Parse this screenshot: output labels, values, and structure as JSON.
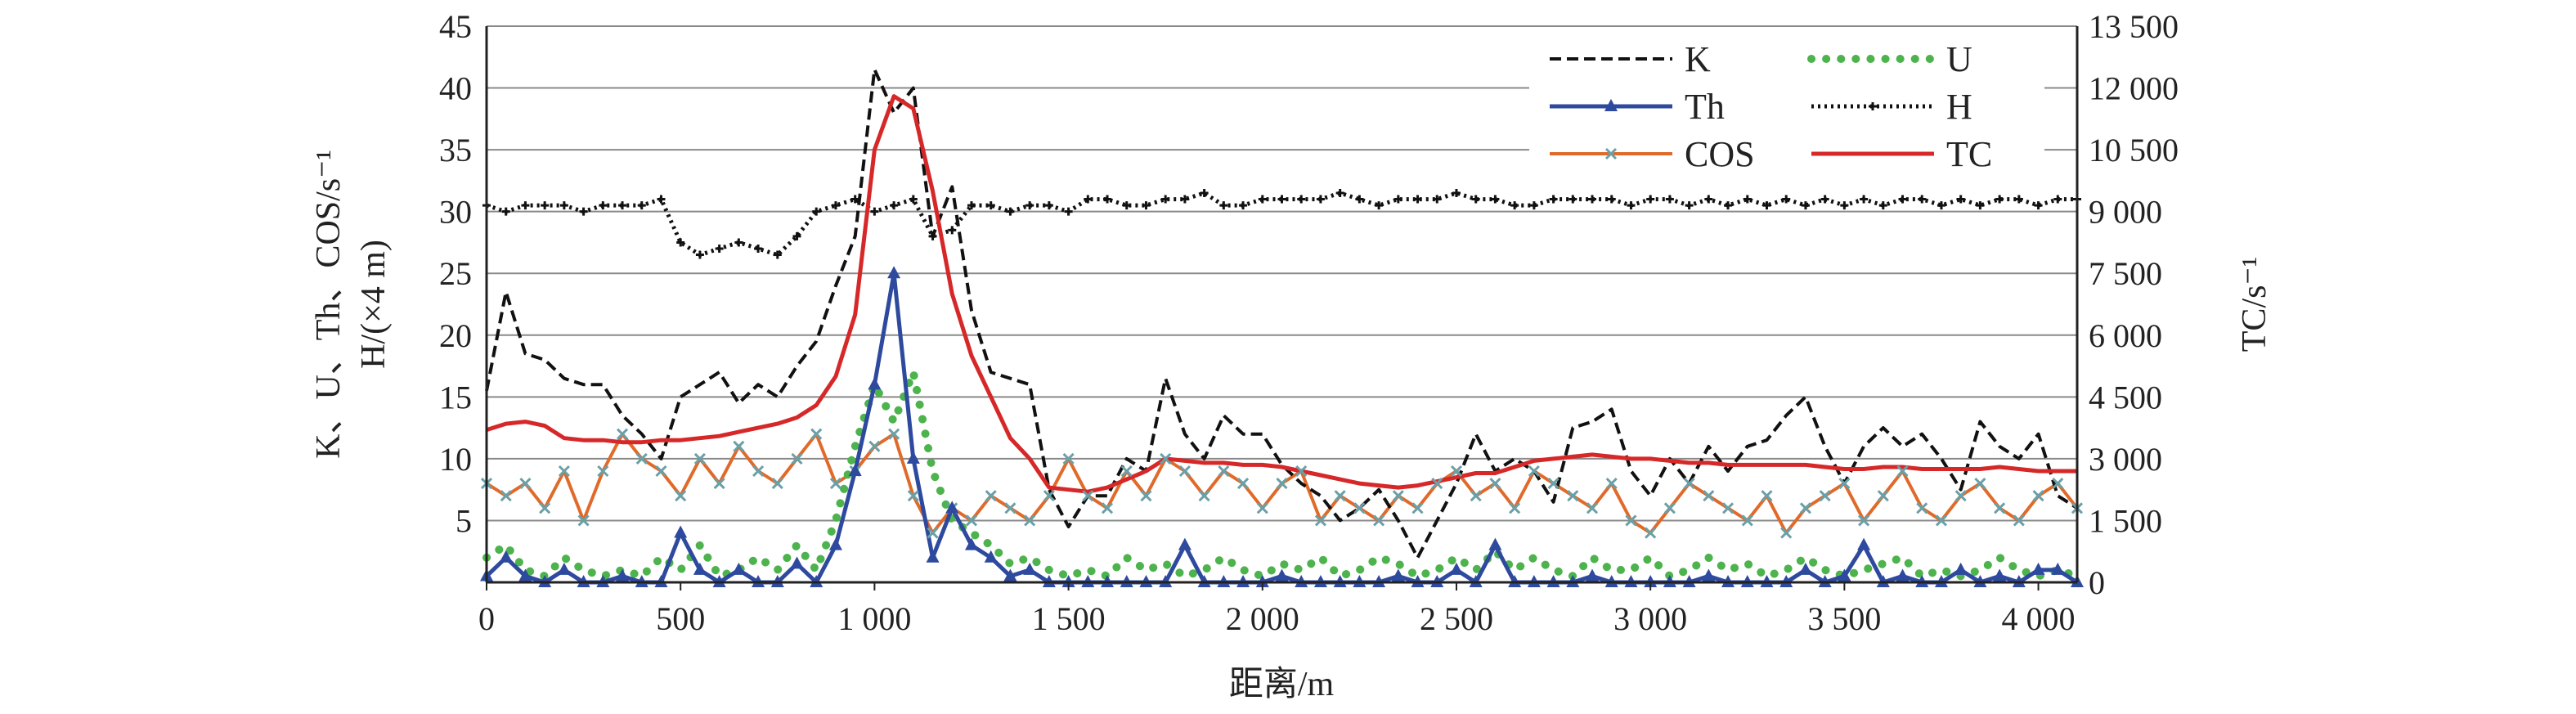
{
  "chart_data": {
    "type": "line",
    "xlabel": "距离/m",
    "ylabel_left_line1": "K、U、Th、COS/s⁻¹",
    "ylabel_left_line2": "H/(×4 m)",
    "ylabel_right": "TC/s⁻¹",
    "x_range": [
      0,
      4100
    ],
    "y_left_range": [
      0,
      45
    ],
    "y_right_range": [
      0,
      13500
    ],
    "x_ticks": [
      {
        "value": 0,
        "label": "0"
      },
      {
        "value": 500,
        "label": "500"
      },
      {
        "value": 1000,
        "label": "1 000"
      },
      {
        "value": 1500,
        "label": "1 500"
      },
      {
        "value": 2000,
        "label": "2 000"
      },
      {
        "value": 2500,
        "label": "2 500"
      },
      {
        "value": 3000,
        "label": "3 000"
      },
      {
        "value": 3500,
        "label": "3 500"
      },
      {
        "value": 4000,
        "label": "4 000"
      }
    ],
    "y_left_ticks": [
      {
        "value": 5,
        "label": "5"
      },
      {
        "value": 10,
        "label": "10"
      },
      {
        "value": 15,
        "label": "15"
      },
      {
        "value": 20,
        "label": "20"
      },
      {
        "value": 25,
        "label": "25"
      },
      {
        "value": 30,
        "label": "30"
      },
      {
        "value": 35,
        "label": "35"
      },
      {
        "value": 40,
        "label": "40"
      },
      {
        "value": 45,
        "label": "45"
      }
    ],
    "y_right_ticks": [
      {
        "value": 0,
        "label": "0"
      },
      {
        "value": 1500,
        "label": "1 500"
      },
      {
        "value": 3000,
        "label": "3 000"
      },
      {
        "value": 4500,
        "label": "4 500"
      },
      {
        "value": 6000,
        "label": "6 000"
      },
      {
        "value": 7500,
        "label": "7 500"
      },
      {
        "value": 9000,
        "label": "9 000"
      },
      {
        "value": 10500,
        "label": "10 500"
      },
      {
        "value": 12000,
        "label": "12 000"
      },
      {
        "value": 13500,
        "label": "13 500"
      }
    ],
    "legend_position": "top-right",
    "series": [
      {
        "name": "K",
        "axis": "left",
        "style": "dashed",
        "color": "#111111",
        "x": [
          0,
          50,
          100,
          150,
          200,
          250,
          300,
          350,
          400,
          450,
          500,
          550,
          600,
          650,
          700,
          750,
          800,
          850,
          900,
          950,
          1000,
          1050,
          1100,
          1150,
          1200,
          1250,
          1300,
          1350,
          1400,
          1450,
          1500,
          1550,
          1600,
          1650,
          1700,
          1750,
          1800,
          1850,
          1900,
          1950,
          2000,
          2050,
          2100,
          2150,
          2200,
          2250,
          2300,
          2350,
          2400,
          2450,
          2500,
          2550,
          2600,
          2650,
          2700,
          2750,
          2800,
          2850,
          2900,
          2950,
          3000,
          3050,
          3100,
          3150,
          3200,
          3250,
          3300,
          3350,
          3400,
          3450,
          3500,
          3550,
          3600,
          3650,
          3700,
          3750,
          3800,
          3850,
          3900,
          3950,
          4000,
          4050,
          4100
        ],
        "y": [
          15.5,
          23.5,
          18.5,
          18,
          16.5,
          16,
          16,
          13.5,
          12,
          10,
          15,
          16,
          17,
          14.5,
          16,
          15,
          17.5,
          19.5,
          24,
          28,
          41.5,
          38,
          40,
          28,
          32,
          22,
          17,
          16.5,
          16,
          7.5,
          4.5,
          7,
          7,
          10,
          9,
          16.5,
          12,
          10,
          13.5,
          12,
          12,
          9.5,
          8,
          7,
          5,
          6,
          7.5,
          5,
          2,
          5,
          8,
          12,
          9,
          10,
          9,
          6.5,
          12.5,
          13,
          14,
          9,
          7,
          10,
          8,
          11,
          9,
          11,
          11.5,
          13.5,
          15,
          11,
          8,
          11,
          12.5,
          11,
          12,
          10,
          7.5,
          13,
          11,
          10,
          12,
          7,
          6
        ]
      },
      {
        "name": "U",
        "axis": "left",
        "style": "dotted",
        "color": "#4db34d",
        "x": [
          0,
          50,
          100,
          150,
          200,
          250,
          300,
          350,
          400,
          450,
          500,
          550,
          600,
          650,
          700,
          750,
          800,
          850,
          900,
          950,
          1000,
          1050,
          1100,
          1150,
          1200,
          1250,
          1300,
          1350,
          1400,
          1450,
          1500,
          1550,
          1600,
          1650,
          1700,
          1750,
          1800,
          1850,
          1900,
          1950,
          2000,
          2050,
          2100,
          2150,
          2200,
          2250,
          2300,
          2350,
          2400,
          2450,
          2500,
          2550,
          2600,
          2650,
          2700,
          2750,
          2800,
          2850,
          2900,
          2950,
          3000,
          3050,
          3100,
          3150,
          3200,
          3250,
          3300,
          3350,
          3400,
          3450,
          3500,
          3550,
          3600,
          3650,
          3700,
          3750,
          3800,
          3850,
          3900,
          3950,
          4000,
          4050,
          4100
        ],
        "y": [
          2,
          3,
          1,
          0.5,
          2,
          1,
          0.5,
          1,
          0.5,
          2,
          1,
          3,
          0.5,
          1,
          2,
          1,
          3,
          1,
          5,
          11,
          16,
          13,
          17,
          9,
          5,
          4,
          3,
          1.5,
          2,
          1,
          0.5,
          1,
          0.5,
          2,
          1,
          1.5,
          0.5,
          1,
          2,
          1,
          0.5,
          1.5,
          1,
          2,
          0.5,
          1,
          2,
          1.5,
          0.5,
          1,
          2,
          1,
          2.5,
          1,
          2,
          1,
          0.5,
          2,
          1,
          1,
          2,
          0.5,
          1,
          2,
          1,
          1.5,
          0.5,
          1,
          2,
          1,
          0.5,
          1,
          1.5,
          2,
          0.5,
          1,
          0.5,
          1,
          2,
          1,
          0.5,
          1,
          0.5
        ]
      },
      {
        "name": "Th",
        "axis": "left",
        "style": "solid-triangle",
        "color": "#2e4a9e",
        "x": [
          0,
          50,
          100,
          150,
          200,
          250,
          300,
          350,
          400,
          450,
          500,
          550,
          600,
          650,
          700,
          750,
          800,
          850,
          900,
          950,
          1000,
          1050,
          1100,
          1150,
          1200,
          1250,
          1300,
          1350,
          1400,
          1450,
          1500,
          1550,
          1600,
          1650,
          1700,
          1750,
          1800,
          1850,
          1900,
          1950,
          2000,
          2050,
          2100,
          2150,
          2200,
          2250,
          2300,
          2350,
          2400,
          2450,
          2500,
          2550,
          2600,
          2650,
          2700,
          2750,
          2800,
          2850,
          2900,
          2950,
          3000,
          3050,
          3100,
          3150,
          3200,
          3250,
          3300,
          3350,
          3400,
          3450,
          3500,
          3550,
          3600,
          3650,
          3700,
          3750,
          3800,
          3850,
          3900,
          3950,
          4000,
          4050,
          4100
        ],
        "y": [
          0.5,
          2,
          0.5,
          0,
          1,
          0,
          0,
          0.5,
          0,
          0,
          4,
          1,
          0,
          1,
          0,
          0,
          1.5,
          0,
          3,
          9,
          16,
          25,
          10,
          2,
          6,
          3,
          2,
          0.5,
          1,
          0,
          0,
          0,
          0,
          0,
          0,
          0,
          3,
          0,
          0,
          0,
          0,
          0.5,
          0,
          0,
          0,
          0,
          0,
          0.5,
          0,
          0,
          1,
          0,
          3,
          0,
          0,
          0,
          0,
          0.5,
          0,
          0,
          0,
          0,
          0,
          0.5,
          0,
          0,
          0,
          0,
          1,
          0,
          0.5,
          3,
          0,
          0.5,
          0,
          0,
          1,
          0,
          0.5,
          0,
          1,
          1,
          0
        ]
      },
      {
        "name": "H",
        "axis": "left",
        "style": "dotted-plus",
        "color": "#111111",
        "x": [
          0,
          50,
          100,
          150,
          200,
          250,
          300,
          350,
          400,
          450,
          500,
          550,
          600,
          650,
          700,
          750,
          800,
          850,
          900,
          950,
          1000,
          1050,
          1100,
          1150,
          1200,
          1250,
          1300,
          1350,
          1400,
          1450,
          1500,
          1550,
          1600,
          1650,
          1700,
          1750,
          1800,
          1850,
          1900,
          1950,
          2000,
          2050,
          2100,
          2150,
          2200,
          2250,
          2300,
          2350,
          2400,
          2450,
          2500,
          2550,
          2600,
          2650,
          2700,
          2750,
          2800,
          2850,
          2900,
          2950,
          3000,
          3050,
          3100,
          3150,
          3200,
          3250,
          3300,
          3350,
          3400,
          3450,
          3500,
          3550,
          3600,
          3650,
          3700,
          3750,
          3800,
          3850,
          3900,
          3950,
          4000,
          4050,
          4100
        ],
        "y": [
          30.5,
          30,
          30.5,
          30.5,
          30.5,
          30,
          30.5,
          30.5,
          30.5,
          31,
          27.5,
          26.5,
          27,
          27.5,
          27,
          26.5,
          28,
          30,
          30.5,
          31,
          30,
          30.5,
          31,
          28,
          28.5,
          30.5,
          30.5,
          30,
          30.5,
          30.5,
          30,
          31,
          31,
          30.5,
          30.5,
          31,
          31,
          31.5,
          30.5,
          30.5,
          31,
          31,
          31,
          31,
          31.5,
          31,
          30.5,
          31,
          31,
          31,
          31.5,
          31,
          31,
          30.5,
          30.5,
          31,
          31,
          31,
          31,
          30.5,
          31,
          31,
          30.5,
          31,
          30.5,
          31,
          30.5,
          31,
          30.5,
          31,
          30.5,
          31,
          30.5,
          31,
          31,
          30.5,
          31,
          30.5,
          31,
          31,
          30.5,
          31,
          31
        ]
      },
      {
        "name": "COS",
        "axis": "left",
        "style": "solid-x",
        "color": "#e06a2a",
        "marker_color": "#6aa0a8",
        "x": [
          0,
          50,
          100,
          150,
          200,
          250,
          300,
          350,
          400,
          450,
          500,
          550,
          600,
          650,
          700,
          750,
          800,
          850,
          900,
          950,
          1000,
          1050,
          1100,
          1150,
          1200,
          1250,
          1300,
          1350,
          1400,
          1450,
          1500,
          1550,
          1600,
          1650,
          1700,
          1750,
          1800,
          1850,
          1900,
          1950,
          2000,
          2050,
          2100,
          2150,
          2200,
          2250,
          2300,
          2350,
          2400,
          2450,
          2500,
          2550,
          2600,
          2650,
          2700,
          2750,
          2800,
          2850,
          2900,
          2950,
          3000,
          3050,
          3100,
          3150,
          3200,
          3250,
          3300,
          3350,
          3400,
          3450,
          3500,
          3550,
          3600,
          3650,
          3700,
          3750,
          3800,
          3850,
          3900,
          3950,
          4000,
          4050,
          4100
        ],
        "y": [
          8,
          7,
          8,
          6,
          9,
          5,
          9,
          12,
          10,
          9,
          7,
          10,
          8,
          11,
          9,
          8,
          10,
          12,
          8,
          9,
          11,
          12,
          7,
          4,
          6,
          5,
          7,
          6,
          5,
          7,
          10,
          7,
          6,
          9,
          7,
          10,
          9,
          7,
          9,
          8,
          6,
          8,
          9,
          5,
          7,
          6,
          5,
          7,
          6,
          8,
          9,
          7,
          8,
          6,
          9,
          8,
          7,
          6,
          8,
          5,
          4,
          6,
          8,
          7,
          6,
          5,
          7,
          4,
          6,
          7,
          8,
          5,
          7,
          9,
          6,
          5,
          7,
          8,
          6,
          5,
          7,
          8,
          6
        ]
      },
      {
        "name": "TC",
        "axis": "right",
        "style": "solid",
        "color": "#d62828",
        "x": [
          0,
          50,
          100,
          150,
          200,
          250,
          300,
          350,
          400,
          450,
          500,
          550,
          600,
          650,
          700,
          750,
          800,
          850,
          900,
          950,
          1000,
          1050,
          1100,
          1150,
          1200,
          1250,
          1300,
          1350,
          1400,
          1450,
          1500,
          1550,
          1600,
          1650,
          1700,
          1750,
          1800,
          1850,
          1900,
          1950,
          2000,
          2050,
          2100,
          2150,
          2200,
          2250,
          2300,
          2350,
          2400,
          2450,
          2500,
          2550,
          2600,
          2650,
          2700,
          2750,
          2800,
          2850,
          2900,
          2950,
          3000,
          3050,
          3100,
          3150,
          3200,
          3250,
          3300,
          3350,
          3400,
          3450,
          3500,
          3550,
          3600,
          3650,
          3700,
          3750,
          3800,
          3850,
          3900,
          3950,
          4000,
          4050,
          4100
        ],
        "y": [
          3700,
          3850,
          3900,
          3800,
          3500,
          3450,
          3450,
          3400,
          3400,
          3450,
          3450,
          3500,
          3550,
          3650,
          3750,
          3850,
          4000,
          4300,
          5000,
          6500,
          10500,
          11800,
          11500,
          9500,
          7000,
          5500,
          4500,
          3500,
          3000,
          2300,
          2250,
          2200,
          2300,
          2500,
          2700,
          3000,
          2950,
          2900,
          2900,
          2850,
          2850,
          2800,
          2700,
          2600,
          2500,
          2400,
          2350,
          2300,
          2350,
          2450,
          2550,
          2650,
          2650,
          2800,
          2950,
          3000,
          3050,
          3100,
          3050,
          3000,
          3000,
          2950,
          2900,
          2900,
          2850,
          2850,
          2850,
          2850,
          2850,
          2800,
          2750,
          2750,
          2800,
          2800,
          2750,
          2750,
          2750,
          2750,
          2800,
          2750,
          2700,
          2700,
          2700
        ]
      }
    ]
  }
}
